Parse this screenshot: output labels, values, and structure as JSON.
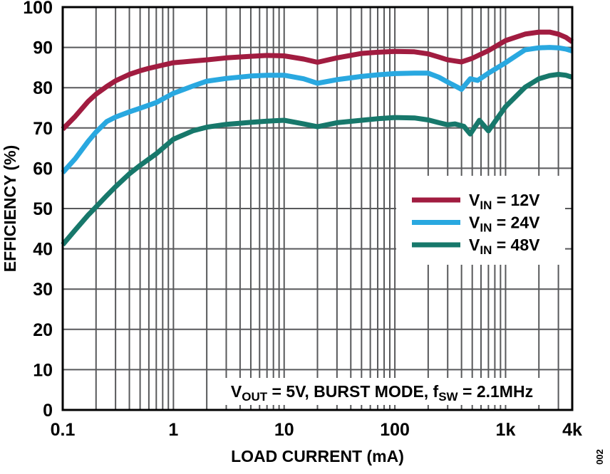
{
  "figure": {
    "figure_number": "002"
  },
  "chart_data": {
    "type": "line",
    "title": "",
    "xlabel": "LOAD CURRENT (mA)",
    "ylabel": "EFFICIENCY (%)",
    "x_scale": "log",
    "xlim": [
      0.1,
      4000
    ],
    "ylim": [
      0,
      100
    ],
    "grid": true,
    "legend_position": "middle-right",
    "x_ticks": [
      {
        "v": 0.1,
        "label": "0.1"
      },
      {
        "v": 1,
        "label": "1"
      },
      {
        "v": 10,
        "label": "10"
      },
      {
        "v": 100,
        "label": "100"
      },
      {
        "v": 1000,
        "label": "1k"
      },
      {
        "v": 4000,
        "label": "4k"
      }
    ],
    "y_ticks": [
      0,
      10,
      20,
      30,
      40,
      50,
      60,
      70,
      80,
      90,
      100
    ],
    "colors": {
      "grid": "#58595B",
      "axis": "#000000",
      "background": "#FFFFFF",
      "vin12": "#A11C40",
      "vin24": "#29A8E0",
      "vin48": "#17786B"
    },
    "series": [
      {
        "name": "VIN = 12V",
        "label_parts": [
          {
            "t": "V"
          },
          {
            "s": "IN"
          },
          {
            "t": " = 12V"
          }
        ],
        "color_key": "vin12",
        "points": [
          [
            0.1,
            69.7
          ],
          [
            0.13,
            72.9
          ],
          [
            0.17,
            76.6
          ],
          [
            0.2,
            78.4
          ],
          [
            0.25,
            80.3
          ],
          [
            0.3,
            81.7
          ],
          [
            0.4,
            83.3
          ],
          [
            0.5,
            84.2
          ],
          [
            0.6,
            84.8
          ],
          [
            0.8,
            85.6
          ],
          [
            1,
            86.2
          ],
          [
            1.5,
            86.6
          ],
          [
            2,
            86.9
          ],
          [
            3,
            87.4
          ],
          [
            5,
            87.8
          ],
          [
            7,
            88.0
          ],
          [
            10,
            87.9
          ],
          [
            15,
            87.1
          ],
          [
            20,
            86.3
          ],
          [
            30,
            87.4
          ],
          [
            50,
            88.5
          ],
          [
            70,
            88.8
          ],
          [
            100,
            89.0
          ],
          [
            150,
            88.9
          ],
          [
            200,
            88.4
          ],
          [
            250,
            87.6
          ],
          [
            300,
            86.9
          ],
          [
            400,
            86.4
          ],
          [
            500,
            87.3
          ],
          [
            700,
            89.2
          ],
          [
            1000,
            91.7
          ],
          [
            1500,
            93.3
          ],
          [
            2000,
            93.8
          ],
          [
            2500,
            93.8
          ],
          [
            3000,
            93.3
          ],
          [
            3500,
            92.5
          ],
          [
            4000,
            91.4
          ]
        ]
      },
      {
        "name": "VIN = 24V",
        "label_parts": [
          {
            "t": "V"
          },
          {
            "s": "IN"
          },
          {
            "t": " = 24V"
          }
        ],
        "color_key": "vin24",
        "points": [
          [
            0.1,
            58.9
          ],
          [
            0.13,
            62.4
          ],
          [
            0.17,
            66.7
          ],
          [
            0.2,
            69.0
          ],
          [
            0.25,
            71.6
          ],
          [
            0.3,
            72.7
          ],
          [
            0.4,
            74.0
          ],
          [
            0.5,
            74.9
          ],
          [
            0.7,
            76.3
          ],
          [
            1,
            78.6
          ],
          [
            1.5,
            80.4
          ],
          [
            2,
            81.6
          ],
          [
            3,
            82.3
          ],
          [
            5,
            82.9
          ],
          [
            7,
            83.1
          ],
          [
            10,
            83.1
          ],
          [
            15,
            82.2
          ],
          [
            20,
            81.1
          ],
          [
            30,
            82.0
          ],
          [
            50,
            82.8
          ],
          [
            70,
            83.2
          ],
          [
            100,
            83.5
          ],
          [
            150,
            83.6
          ],
          [
            200,
            83.6
          ],
          [
            250,
            82.6
          ],
          [
            300,
            81.4
          ],
          [
            400,
            79.6
          ],
          [
            480,
            82.2
          ],
          [
            560,
            81.8
          ],
          [
            700,
            83.6
          ],
          [
            1000,
            86.2
          ],
          [
            1500,
            89.4
          ],
          [
            2000,
            89.9
          ],
          [
            2500,
            90.0
          ],
          [
            3000,
            89.9
          ],
          [
            3500,
            89.6
          ],
          [
            4000,
            89.1
          ]
        ]
      },
      {
        "name": "VIN = 48V",
        "label_parts": [
          {
            "t": "V"
          },
          {
            "s": "IN"
          },
          {
            "t": " = 48V"
          }
        ],
        "color_key": "vin48",
        "points": [
          [
            0.1,
            41.0
          ],
          [
            0.13,
            44.7
          ],
          [
            0.17,
            48.4
          ],
          [
            0.2,
            50.4
          ],
          [
            0.25,
            53.2
          ],
          [
            0.3,
            55.4
          ],
          [
            0.4,
            58.6
          ],
          [
            0.5,
            60.7
          ],
          [
            0.7,
            63.6
          ],
          [
            1,
            67.2
          ],
          [
            1.5,
            69.3
          ],
          [
            2,
            70.2
          ],
          [
            3,
            70.9
          ],
          [
            5,
            71.4
          ],
          [
            7,
            71.7
          ],
          [
            10,
            71.9
          ],
          [
            15,
            71.0
          ],
          [
            20,
            70.3
          ],
          [
            30,
            71.3
          ],
          [
            50,
            71.9
          ],
          [
            70,
            72.3
          ],
          [
            100,
            72.6
          ],
          [
            150,
            72.5
          ],
          [
            200,
            72.0
          ],
          [
            250,
            71.3
          ],
          [
            300,
            70.8
          ],
          [
            350,
            71.0
          ],
          [
            420,
            70.4
          ],
          [
            480,
            68.5
          ],
          [
            580,
            71.9
          ],
          [
            700,
            69.3
          ],
          [
            1000,
            75.3
          ],
          [
            1500,
            80.1
          ],
          [
            2000,
            82.2
          ],
          [
            2500,
            83.0
          ],
          [
            3000,
            83.3
          ],
          [
            3500,
            83.1
          ],
          [
            4000,
            82.6
          ]
        ]
      }
    ],
    "annotation": {
      "text": "VOUT = 5V, BURST MODE, fSW = 2.1MHz",
      "parts": [
        {
          "t": "V"
        },
        {
          "s": "OUT"
        },
        {
          "t": " = 5V, BURST MODE, f"
        },
        {
          "s": "SW"
        },
        {
          "t": " = 2.1MHz"
        }
      ]
    }
  }
}
